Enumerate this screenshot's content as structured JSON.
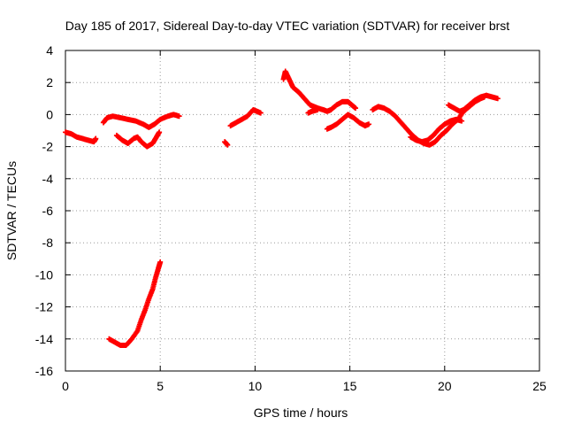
{
  "chart_data": {
    "type": "scatter",
    "title": "Day 185 of 2017, Sidereal Day-to-day VTEC variation (SDTVAR) for receiver brst",
    "xlabel": "GPS time / hours",
    "ylabel": "SDTVAR / TECUs",
    "xlim": [
      0,
      25
    ],
    "ylim": [
      -16,
      4
    ],
    "xticks": [
      0,
      5,
      10,
      15,
      20,
      25
    ],
    "yticks": [
      -16,
      -14,
      -12,
      -10,
      -8,
      -6,
      -4,
      -2,
      0,
      2,
      4
    ],
    "grid": true,
    "marker": "plus",
    "color": "#ff0000",
    "series": [
      {
        "name": "segment-1",
        "points": [
          [
            0.0,
            -1.1
          ],
          [
            0.3,
            -1.2
          ],
          [
            0.6,
            -1.4
          ],
          [
            0.9,
            -1.5
          ],
          [
            1.2,
            -1.6
          ],
          [
            1.5,
            -1.7
          ],
          [
            1.6,
            -1.5
          ]
        ]
      },
      {
        "name": "segment-2",
        "points": [
          [
            2.0,
            -0.5
          ],
          [
            2.2,
            -0.2
          ],
          [
            2.5,
            -0.1
          ],
          [
            2.9,
            -0.2
          ],
          [
            3.3,
            -0.3
          ],
          [
            3.7,
            -0.4
          ],
          [
            4.1,
            -0.6
          ],
          [
            4.4,
            -0.8
          ],
          [
            4.7,
            -0.6
          ],
          [
            5.0,
            -0.3
          ],
          [
            5.4,
            -0.1
          ],
          [
            5.7,
            0.0
          ],
          [
            6.0,
            -0.1
          ]
        ]
      },
      {
        "name": "segment-3",
        "points": [
          [
            2.7,
            -1.3
          ],
          [
            3.0,
            -1.6
          ],
          [
            3.3,
            -1.8
          ],
          [
            3.6,
            -1.5
          ],
          [
            3.8,
            -1.4
          ],
          [
            4.0,
            -1.7
          ],
          [
            4.3,
            -2.0
          ],
          [
            4.6,
            -1.8
          ],
          [
            4.8,
            -1.4
          ],
          [
            4.95,
            -1.1
          ]
        ]
      },
      {
        "name": "segment-4",
        "points": [
          [
            2.3,
            -14.0
          ],
          [
            2.6,
            -14.2
          ],
          [
            2.9,
            -14.4
          ],
          [
            3.2,
            -14.4
          ],
          [
            3.5,
            -14.0
          ],
          [
            3.8,
            -13.5
          ],
          [
            4.0,
            -12.8
          ],
          [
            4.2,
            -12.2
          ],
          [
            4.4,
            -11.5
          ],
          [
            4.6,
            -10.9
          ],
          [
            4.75,
            -10.2
          ],
          [
            4.9,
            -9.6
          ],
          [
            5.0,
            -9.2
          ]
        ]
      },
      {
        "name": "segment-5",
        "points": [
          [
            8.4,
            -1.7
          ],
          [
            8.55,
            -1.9
          ]
        ]
      },
      {
        "name": "segment-6",
        "points": [
          [
            8.7,
            -0.7
          ],
          [
            9.0,
            -0.5
          ],
          [
            9.3,
            -0.3
          ],
          [
            9.6,
            -0.1
          ],
          [
            9.9,
            0.3
          ],
          [
            10.1,
            0.2
          ],
          [
            10.3,
            0.1
          ]
        ]
      },
      {
        "name": "segment-7",
        "points": [
          [
            11.5,
            2.2
          ],
          [
            11.6,
            2.7
          ],
          [
            11.8,
            2.2
          ],
          [
            12.0,
            1.7
          ],
          [
            12.3,
            1.4
          ],
          [
            12.6,
            1.0
          ],
          [
            12.9,
            0.6
          ],
          [
            13.1,
            0.5
          ],
          [
            13.3,
            0.4
          ],
          [
            13.6,
            0.3
          ],
          [
            13.8,
            0.2
          ],
          [
            14.0,
            0.3
          ],
          [
            14.3,
            0.6
          ],
          [
            14.6,
            0.8
          ],
          [
            14.9,
            0.8
          ],
          [
            15.1,
            0.6
          ],
          [
            15.3,
            0.4
          ]
        ]
      },
      {
        "name": "segment-8",
        "points": [
          [
            12.8,
            0.1
          ],
          [
            13.0,
            0.2
          ],
          [
            13.3,
            0.3
          ]
        ]
      },
      {
        "name": "segment-9",
        "points": [
          [
            13.8,
            -0.9
          ],
          [
            14.0,
            -0.8
          ],
          [
            14.3,
            -0.6
          ],
          [
            14.6,
            -0.3
          ],
          [
            14.9,
            0.0
          ],
          [
            15.2,
            -0.2
          ],
          [
            15.5,
            -0.5
          ],
          [
            15.8,
            -0.7
          ],
          [
            16.0,
            -0.6
          ]
        ]
      },
      {
        "name": "segment-10",
        "points": [
          [
            16.2,
            0.3
          ],
          [
            16.5,
            0.5
          ],
          [
            16.8,
            0.4
          ],
          [
            17.1,
            0.2
          ],
          [
            17.4,
            -0.1
          ],
          [
            17.7,
            -0.5
          ],
          [
            18.0,
            -0.9
          ],
          [
            18.3,
            -1.3
          ],
          [
            18.6,
            -1.6
          ],
          [
            18.9,
            -1.8
          ],
          [
            19.2,
            -1.9
          ],
          [
            19.5,
            -1.7
          ],
          [
            19.8,
            -1.3
          ],
          [
            20.1,
            -1.0
          ],
          [
            20.4,
            -0.6
          ],
          [
            20.7,
            -0.3
          ],
          [
            21.0,
            0.2
          ],
          [
            21.3,
            0.5
          ],
          [
            21.6,
            0.8
          ],
          [
            21.9,
            1.0
          ],
          [
            22.1,
            1.1
          ]
        ]
      },
      {
        "name": "segment-11",
        "points": [
          [
            18.2,
            -1.4
          ],
          [
            18.5,
            -1.6
          ],
          [
            18.8,
            -1.7
          ],
          [
            19.1,
            -1.6
          ],
          [
            19.4,
            -1.3
          ],
          [
            19.7,
            -0.9
          ],
          [
            20.0,
            -0.6
          ],
          [
            20.3,
            -0.4
          ],
          [
            20.6,
            -0.3
          ],
          [
            20.9,
            -0.4
          ]
        ]
      },
      {
        "name": "segment-12",
        "points": [
          [
            20.2,
            0.6
          ],
          [
            20.5,
            0.4
          ],
          [
            20.8,
            0.2
          ],
          [
            21.0,
            0.3
          ],
          [
            21.3,
            0.6
          ],
          [
            21.6,
            0.9
          ],
          [
            21.9,
            1.1
          ],
          [
            22.2,
            1.2
          ],
          [
            22.5,
            1.1
          ],
          [
            22.8,
            1.0
          ]
        ]
      }
    ]
  }
}
